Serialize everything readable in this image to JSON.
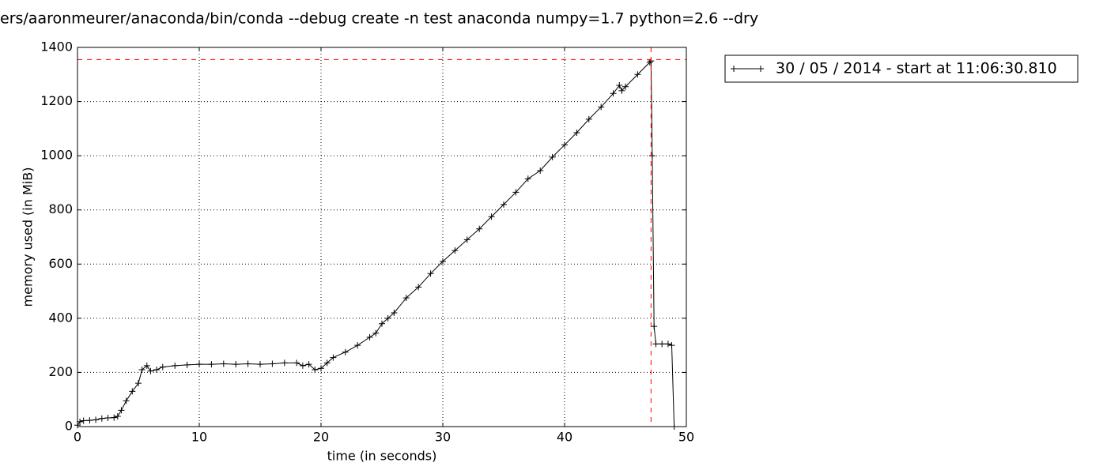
{
  "chart_data": {
    "type": "line",
    "title": "ers/aaronmeurer/anaconda/bin/conda --debug create -n test anaconda numpy=1.7 python=2.6 --dry",
    "xlabel": "time (in seconds)",
    "ylabel": "memory used (in MiB)",
    "x": [
      0,
      0.2,
      0.5,
      1,
      1.5,
      2,
      2.5,
      3,
      3.3,
      3.6,
      4,
      4.5,
      5,
      5.3,
      5.7,
      6,
      6.5,
      7,
      8,
      9,
      10,
      11,
      12,
      13,
      14,
      15,
      16,
      17,
      18,
      18.5,
      19,
      19.5,
      20,
      20.5,
      21,
      22,
      23,
      24,
      24.5,
      25,
      25.5,
      26,
      27,
      28,
      29,
      30,
      31,
      32,
      33,
      34,
      35,
      36,
      37,
      38,
      39,
      40,
      41,
      42,
      43,
      44,
      44.5,
      44.7,
      45,
      46,
      47,
      47.1,
      47.2,
      47.35,
      47.5,
      48,
      48.5,
      48.8,
      49
    ],
    "series": [
      {
        "name": "30 / 05 / 2014 - start at 11:06:30.810",
        "color": "#000000",
        "values": [
          5,
          18,
          22,
          23,
          25,
          30,
          32,
          33,
          38,
          60,
          95,
          130,
          160,
          210,
          225,
          205,
          210,
          220,
          225,
          228,
          230,
          230,
          232,
          230,
          232,
          230,
          232,
          235,
          235,
          225,
          230,
          210,
          215,
          235,
          255,
          275,
          300,
          330,
          345,
          380,
          400,
          420,
          475,
          515,
          565,
          610,
          650,
          690,
          730,
          775,
          820,
          865,
          915,
          945,
          995,
          1040,
          1085,
          1135,
          1180,
          1230,
          1260,
          1240,
          1255,
          1300,
          1345,
          1350,
          1000,
          370,
          305,
          305,
          305,
          300,
          0
        ]
      }
    ],
    "max_line": {
      "x": 47.1,
      "y": 1355,
      "color": "#ff0000"
    },
    "xlim": [
      0,
      50
    ],
    "xticks": [
      0,
      10,
      20,
      30,
      40,
      50
    ],
    "ylim": [
      0,
      1400
    ],
    "yticks": [
      0,
      200,
      400,
      600,
      800,
      1000,
      1200,
      1400
    ],
    "grid": true,
    "legend": "outside-upper-right"
  }
}
